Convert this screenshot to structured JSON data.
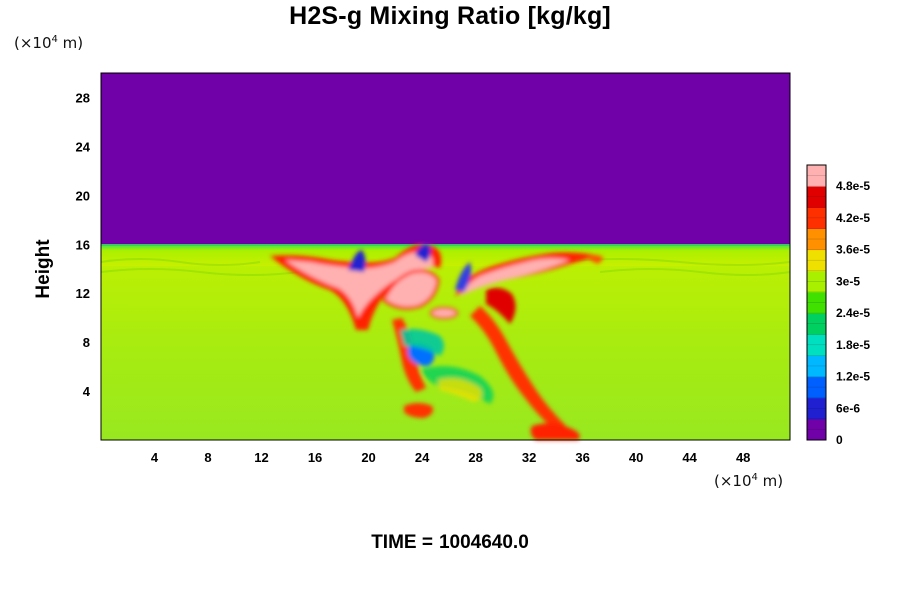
{
  "title": "H2S-g Mixing Ratio [kg/kg]",
  "y_unit": {
    "prefix": "(×10",
    "exp": "4",
    "suffix": " m)"
  },
  "x_unit": {
    "prefix": "(×10",
    "exp": "4",
    "suffix": " m)"
  },
  "time": {
    "label": "TIME =",
    "value": "1004640.0"
  },
  "chart_data": {
    "type": "heatmap",
    "title": "H2S-g Mixing Ratio [kg/kg]",
    "xlabel": "",
    "ylabel": "Height",
    "xlim": [
      0,
      51.5
    ],
    "ylim": [
      0,
      30
    ],
    "x_ticks": [
      4,
      8,
      12,
      16,
      20,
      24,
      28,
      32,
      36,
      40,
      44,
      48
    ],
    "y_ticks": [
      4,
      8,
      12,
      16,
      20,
      24,
      28
    ],
    "colorbar": {
      "range": [
        0,
        5.2e-05
      ],
      "tick_labels": [
        "0",
        "6e-6",
        "1.2e-5",
        "1.8e-5",
        "2.4e-5",
        "3e-5",
        "3.6e-5",
        "4.2e-5",
        "4.8e-5"
      ],
      "tick_values": [
        0,
        6e-06,
        1.2e-05,
        1.8e-05,
        2.4e-05,
        3e-05,
        3.6e-05,
        4.2e-05,
        4.8e-05
      ],
      "colors": [
        "#7000a8",
        "#2020d0",
        "#0060ff",
        "#00b8ff",
        "#00e0c0",
        "#00d060",
        "#40e000",
        "#a8f000",
        "#f0e000",
        "#ff9000",
        "#ff3000",
        "#e00000",
        "#ffb0b0"
      ]
    },
    "features": {
      "background_top_value": 0,
      "boundary_height": 15.8,
      "lower_layer_value": 3.3e-05,
      "plume_max_value": 5.2e-05,
      "plume_center_x": 25
    },
    "grid": false
  }
}
